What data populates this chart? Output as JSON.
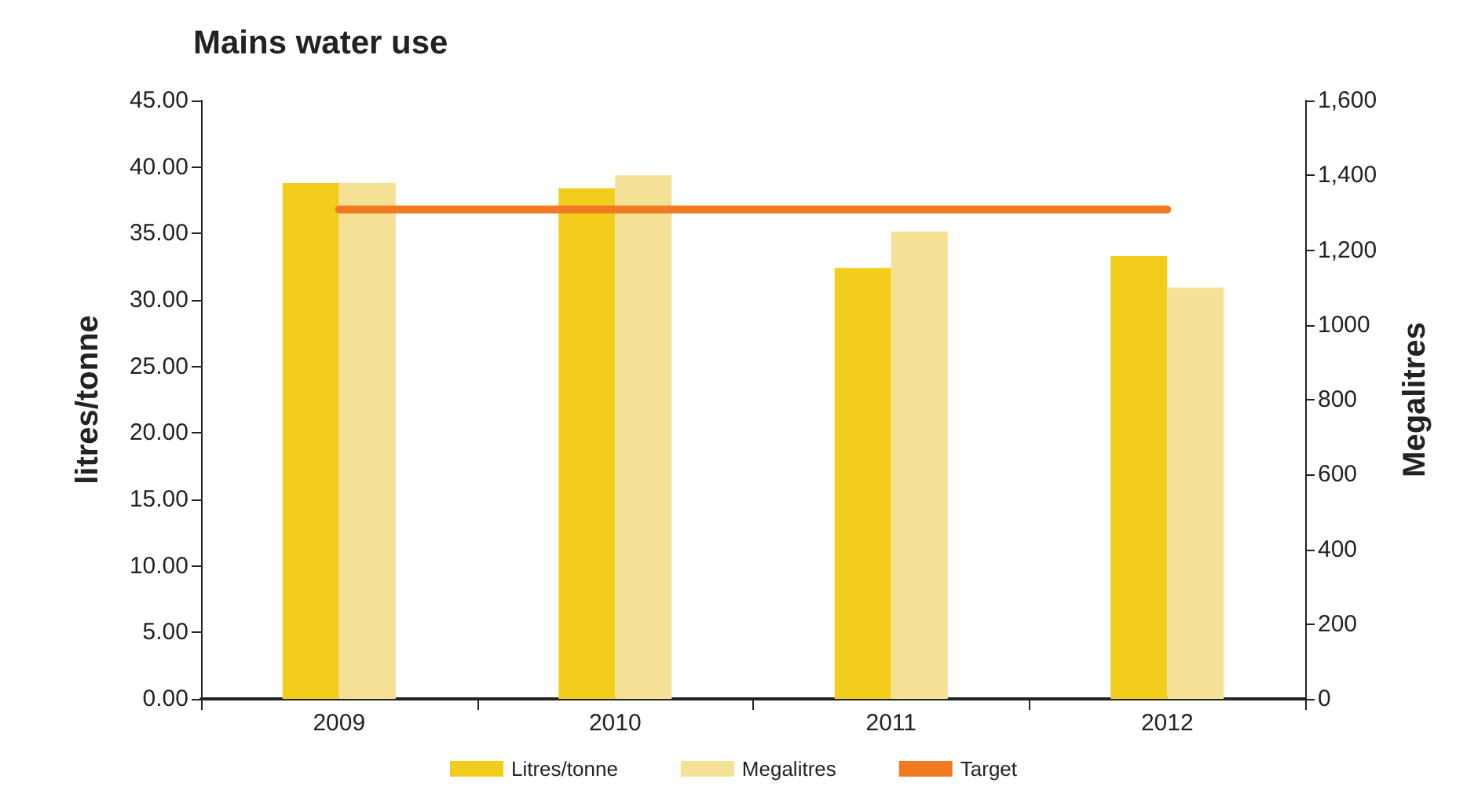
{
  "chart_data": {
    "type": "bar",
    "title": "Mains water use",
    "ylabel": "litres/tonne",
    "y2label": "Megalitres",
    "categories": [
      "2009",
      "2010",
      "2011",
      "2012"
    ],
    "series": [
      {
        "name": "Litres/tonne",
        "color": "#f2cd1c",
        "values": [
          38.8,
          38.4,
          32.4,
          33.3
        ]
      },
      {
        "name": "Megalitres",
        "color": "#f5e196",
        "values": [
          1380,
          1400,
          1250,
          1100
        ],
        "axis": "y2"
      },
      {
        "name": "Target",
        "type": "line",
        "color": "#f07a22",
        "values": [
          36.8,
          36.8,
          36.8,
          36.8
        ],
        "marker": "none"
      }
    ],
    "ylim": [
      0,
      45
    ],
    "yticks": [
      {
        "value": 0,
        "label": "0.00"
      },
      {
        "value": 5,
        "label": "5.00"
      },
      {
        "value": 10,
        "label": "10.00"
      },
      {
        "value": 15,
        "label": "15.00"
      },
      {
        "value": 20,
        "label": "20.00"
      },
      {
        "value": 25,
        "label": "25.00"
      },
      {
        "value": 30,
        "label": "30.00"
      },
      {
        "value": 35,
        "label": "35.00"
      },
      {
        "value": 40,
        "label": "40.00"
      },
      {
        "value": 45,
        "label": "45.00"
      }
    ],
    "y2lim": [
      0,
      1600
    ],
    "y2ticks": [
      0,
      200,
      400,
      600,
      800,
      1000,
      {
        "value": 1200,
        "label": "1,200"
      },
      {
        "value": 1400,
        "label": "1,400"
      },
      {
        "value": 1600,
        "label": "1,600"
      }
    ],
    "grid": false,
    "legend": "bottom"
  }
}
